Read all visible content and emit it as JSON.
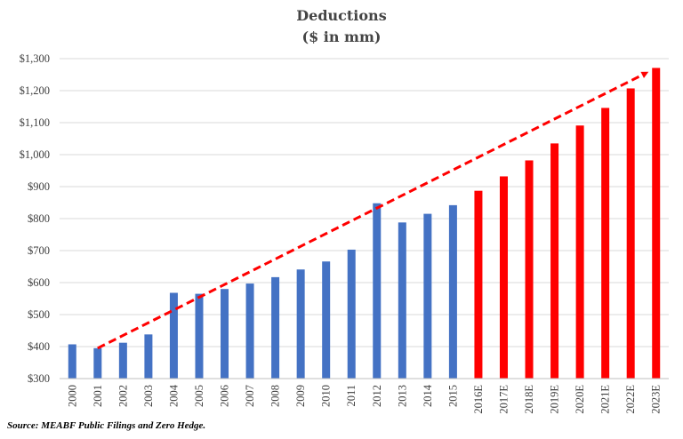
{
  "chart_data": {
    "type": "bar",
    "title": "Deductions",
    "subtitle": "($ in mm)",
    "xlabel": "",
    "ylabel": "",
    "ylim": [
      300,
      1300
    ],
    "yticks": [
      "$300",
      "$400",
      "$500",
      "$600",
      "$700",
      "$800",
      "$900",
      "$1,000",
      "$1,100",
      "$1,200",
      "$1,300"
    ],
    "grid": true,
    "categories": [
      "2000",
      "2001",
      "2002",
      "2003",
      "2004",
      "2005",
      "2006",
      "2007",
      "2008",
      "2009",
      "2010",
      "2011",
      "2012",
      "2013",
      "2014",
      "2015",
      "2016E",
      "2017E",
      "2018E",
      "2019E",
      "2020E",
      "2021E",
      "2022E",
      "2023E"
    ],
    "values": [
      407,
      395,
      412,
      438,
      568,
      565,
      580,
      597,
      617,
      641,
      666,
      703,
      848,
      788,
      815,
      842,
      887,
      932,
      982,
      1035,
      1091,
      1146,
      1207,
      1271
    ],
    "colors": [
      "#4472C4",
      "#4472C4",
      "#4472C4",
      "#4472C4",
      "#4472C4",
      "#4472C4",
      "#4472C4",
      "#4472C4",
      "#4472C4",
      "#4472C4",
      "#4472C4",
      "#4472C4",
      "#4472C4",
      "#4472C4",
      "#4472C4",
      "#4472C4",
      "#FF0000",
      "#FF0000",
      "#FF0000",
      "#FF0000",
      "#FF0000",
      "#FF0000",
      "#FF0000",
      "#FF0000"
    ],
    "trend_arrow": {
      "from": [
        "2001",
        395
      ],
      "to": [
        "2023E",
        1265
      ],
      "color": "#FF0000",
      "style": "dashed"
    },
    "source": "Source:  MEABF Public Filings and Zero Hedge."
  }
}
